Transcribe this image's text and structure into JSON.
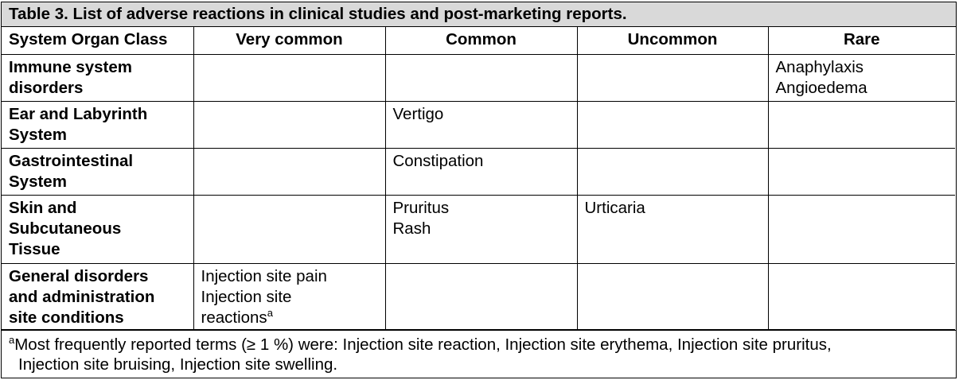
{
  "table": {
    "title": "Table 3. List of adverse reactions in clinical studies and post-marketing reports.",
    "headers": [
      "System Organ Class",
      "Very common",
      "Common",
      "Uncommon",
      "Rare"
    ],
    "rows": [
      {
        "soc": [
          "Immune system",
          "disorders"
        ],
        "very_common": [],
        "common": [],
        "uncommon": [],
        "rare": [
          "Anaphylaxis",
          "Angioedema"
        ]
      },
      {
        "soc": [
          "Ear and Labyrinth",
          "System"
        ],
        "very_common": [],
        "common": [
          "Vertigo"
        ],
        "uncommon": [],
        "rare": []
      },
      {
        "soc": [
          "Gastrointestinal",
          "System"
        ],
        "very_common": [],
        "common": [
          "Constipation"
        ],
        "uncommon": [],
        "rare": []
      },
      {
        "soc": [
          "Skin and",
          "Subcutaneous",
          "Tissue"
        ],
        "very_common": [],
        "common": [
          "Pruritus",
          "Rash"
        ],
        "uncommon": [
          "Urticaria"
        ],
        "rare": []
      },
      {
        "soc": [
          "General disorders",
          "and administration",
          "site conditions"
        ],
        "very_common": [
          "Injection site pain",
          "Injection site",
          "reactions"
        ],
        "very_common_sup": "a",
        "common": [],
        "uncommon": [],
        "rare": []
      }
    ],
    "footnote": {
      "marker": "a",
      "line1": "Most frequently reported terms (≥ 1 %) were: Injection site reaction, Injection site erythema, Injection site pruritus,",
      "line2": "Injection site bruising, Injection site swelling."
    }
  }
}
